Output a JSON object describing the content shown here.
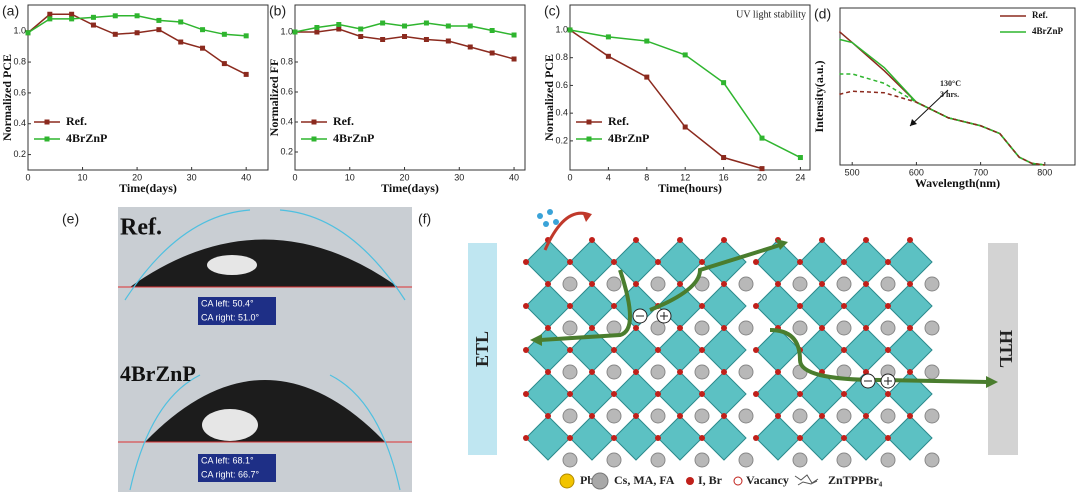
{
  "chart_data": [
    {
      "type": "line",
      "panel_label": "(a)",
      "ylabel": "Normalized PCE",
      "xlabel": "Time(days)",
      "markers": true,
      "legend": "lower left",
      "x": [
        0,
        4,
        8,
        12,
        16,
        20,
        24,
        28,
        32,
        36,
        40
      ],
      "series": [
        {
          "name": "Ref.",
          "color": "#8b2a1e",
          "values": [
            0.99,
            1.11,
            1.11,
            1.04,
            0.98,
            0.99,
            1.01,
            0.93,
            0.89,
            0.79,
            0.72
          ]
        },
        {
          "name": "4BrZnP",
          "color": "#2fb52f",
          "values": [
            0.99,
            1.08,
            1.08,
            1.09,
            1.1,
            1.1,
            1.07,
            1.06,
            1.01,
            0.98,
            0.97
          ]
        }
      ],
      "xlim": [
        0,
        44
      ],
      "ylim": [
        0.1,
        1.17
      ],
      "xticks": [
        0,
        10,
        20,
        30,
        40
      ],
      "yticks": [
        0.2,
        0.4,
        0.6,
        0.8,
        {
          "value": 1,
          "label": "1.0"
        }
      ]
    },
    {
      "type": "line",
      "panel_label": "(b)",
      "ylabel": "Normalized FF",
      "xlabel": "Time(days)",
      "markers": true,
      "legend": "lower left",
      "x": [
        0,
        4,
        8,
        12,
        16,
        20,
        24,
        28,
        32,
        36,
        40
      ],
      "series": [
        {
          "name": "Ref.",
          "color": "#8b2a1e",
          "values": [
            1.0,
            1.0,
            1.02,
            0.97,
            0.95,
            0.97,
            0.95,
            0.94,
            0.9,
            0.86,
            0.82
          ]
        },
        {
          "name": "4BrZnP",
          "color": "#2fb52f",
          "values": [
            1.0,
            1.03,
            1.05,
            1.02,
            1.06,
            1.04,
            1.06,
            1.04,
            1.04,
            1.01,
            0.98
          ]
        }
      ],
      "xlim": [
        0,
        42
      ],
      "ylim": [
        0.08,
        1.18
      ],
      "xticks": [
        0,
        10,
        20,
        30,
        40
      ],
      "yticks": [
        0.2,
        0.4,
        0.6,
        0.8,
        {
          "value": 1,
          "label": "1.0"
        }
      ]
    },
    {
      "type": "line",
      "panel_label": "(c)",
      "ylabel": "Normalized  PCE",
      "xlabel": "Time(hours)",
      "annotation": "UV light stability",
      "markers": true,
      "legend": "lower left",
      "x": [
        0,
        4,
        8,
        12,
        16,
        20,
        24
      ],
      "series": [
        {
          "name": "Ref.",
          "color": "#8b2a1e",
          "values": [
            1.0,
            0.81,
            0.66,
            0.3,
            0.08,
            0.0,
            null
          ]
        },
        {
          "name": "4BrZnP",
          "color": "#2fb52f",
          "values": [
            1.0,
            0.95,
            0.92,
            0.82,
            0.62,
            0.22,
            0.08
          ]
        }
      ],
      "xlim": [
        0,
        25
      ],
      "ylim": [
        -0.01,
        1.18
      ],
      "xticks": [
        0,
        4,
        8,
        12,
        16,
        20,
        24
      ],
      "yticks": [
        0.2,
        0.4,
        0.6,
        0.8,
        {
          "value": 1,
          "label": "1.0"
        }
      ]
    },
    {
      "type": "line",
      "panel_label": "(d)",
      "ylabel": "Intensity(a.u.)",
      "xlabel": "Wavelength(nm)",
      "annotation_lines": [
        "130°C",
        "3 hrs."
      ],
      "markers": false,
      "legend": "upper right",
      "x": [
        480,
        500,
        550,
        600,
        650,
        700,
        730,
        760,
        780,
        800
      ],
      "series": [
        {
          "name": "Ref.",
          "color": "#8b2a1e",
          "values": [
            0.85,
            0.78,
            0.6,
            0.4,
            0.3,
            0.25,
            0.2,
            0.05,
            0.01,
            0.0
          ]
        },
        {
          "name": "4BrZnP",
          "color": "#2fb52f",
          "values": [
            0.8,
            0.78,
            0.62,
            0.4,
            0.3,
            0.25,
            0.2,
            0.05,
            0.01,
            0.0
          ]
        },
        {
          "color": "#2fb52f",
          "dashed": true,
          "values": [
            0.58,
            0.58,
            0.52,
            0.4,
            0.3,
            0.25,
            0.2,
            0.05,
            0.01,
            0.0
          ]
        },
        {
          "color": "#8b2a1e",
          "dashed": true,
          "values": [
            0.45,
            0.47,
            0.46,
            0.4,
            0.3,
            0.25,
            0.2,
            0.05,
            0.01,
            0.0
          ]
        }
      ],
      "xlim": [
        481,
        847
      ],
      "ylim": [
        0,
        1
      ],
      "xticks": [
        500,
        600,
        700,
        800
      ]
    }
  ],
  "panel_e": {
    "label": "(e)",
    "samples": [
      {
        "name": "Ref.",
        "ca_left": "CA left:  50.4°",
        "ca_right": "CA right: 51.0°"
      },
      {
        "name": "4BrZnP",
        "ca_left": "CA left:  68.1°",
        "ca_right": "CA right: 66.7°"
      }
    ]
  },
  "panel_f": {
    "label": "(f)",
    "etl": "ETL",
    "htl": "HTL",
    "legend": [
      "Pb",
      "Cs, MA, FA",
      "I, Br",
      "Vacancy",
      "ZnTPPBr₄"
    ]
  }
}
